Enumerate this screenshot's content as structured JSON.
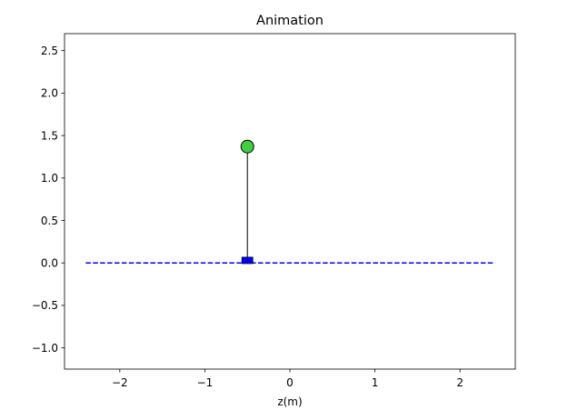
{
  "chart_data": {
    "type": "scatter",
    "title": "Animation",
    "xlabel": "z(m)",
    "ylabel": "",
    "xlim": [
      -2.65,
      2.65
    ],
    "ylim": [
      -1.25,
      2.7
    ],
    "x_ticks": [
      -2,
      -1,
      0,
      1,
      2
    ],
    "x_tick_labels": [
      "−2",
      "−1",
      "0",
      "1",
      "2"
    ],
    "y_ticks": [
      -1.0,
      -0.5,
      0.0,
      0.5,
      1.0,
      1.5,
      2.0,
      2.5
    ],
    "y_tick_labels": [
      "−1.0",
      "−0.5",
      "0.0",
      "0.5",
      "1.0",
      "1.5",
      "2.0",
      "2.5"
    ],
    "grid": false,
    "track": {
      "x": [
        -2.4,
        2.4
      ],
      "y": [
        0,
        0
      ],
      "style": "dashed",
      "color": "#0000ff"
    },
    "cart": {
      "x": -0.5,
      "y": 0.03,
      "color": "#0000ff"
    },
    "pendulum_rod": {
      "x": [
        -0.5,
        -0.5
      ],
      "y": [
        0.03,
        1.37
      ],
      "color": "#000000"
    },
    "bob": {
      "x": -0.5,
      "y": 1.37,
      "color": "#3fcf3f"
    }
  }
}
